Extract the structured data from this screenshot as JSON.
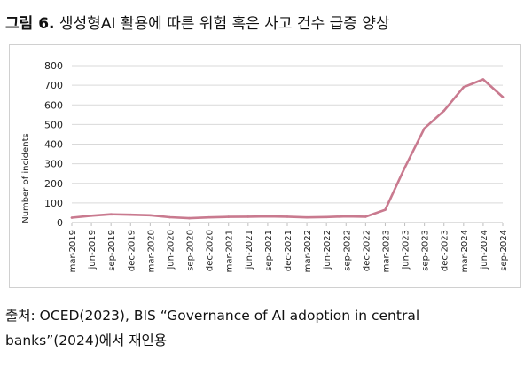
{
  "figure": {
    "label": "그림 6.",
    "title": "생성형AI 활용에 따른 위험 혹은 사고 건수 급증 양상"
  },
  "source": {
    "line1": "출처: OCED(2023), BIS “Governance of AI adoption in central",
    "line2": "banks”(2024)에서 재인용"
  },
  "colors": {
    "line": "#c97a8f",
    "grid": "#d9d9d9",
    "axis": "#bfbfbf"
  },
  "chart_data": {
    "type": "line",
    "title": "",
    "xlabel": "",
    "ylabel": "Number of incidents",
    "ylim": [
      0,
      800
    ],
    "yticks": [
      0,
      100,
      200,
      300,
      400,
      500,
      600,
      700,
      800
    ],
    "grid": true,
    "categories": [
      "mar-2019",
      "jun-2019",
      "sep-2019",
      "dec-2019",
      "mar-2020",
      "jun-2020",
      "sep-2020",
      "dec-2020",
      "mar-2021",
      "jun-2021",
      "sep-2021",
      "dec-2021",
      "mar-2022",
      "jun-2022",
      "sep-2022",
      "dec-2022",
      "mar-2023",
      "jun-2023",
      "sep-2023",
      "dec-2023",
      "mar-2024",
      "jun-2024",
      "sep-2024"
    ],
    "series": [
      {
        "name": "Number of incidents",
        "values": [
          25,
          35,
          42,
          40,
          37,
          27,
          22,
          26,
          29,
          30,
          31,
          30,
          26,
          28,
          31,
          30,
          65,
          280,
          480,
          570,
          690,
          730,
          640
        ]
      }
    ]
  }
}
